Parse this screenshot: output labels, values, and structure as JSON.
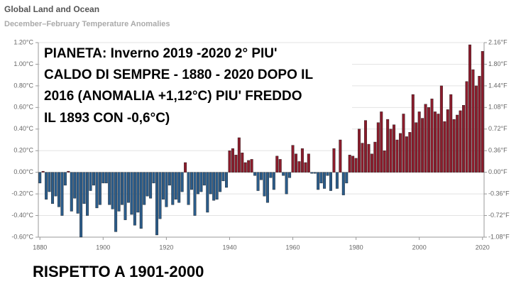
{
  "chart_data": {
    "type": "bar",
    "title": "Global Land and Ocean",
    "subtitle": "December–February Temperature Anomalies",
    "annotation_lines": [
      "PIANETA: Inverno 2019 -2020 2° PIU'",
      "CALDO DI SEMPRE - 1880 - 2020 DOPO IL",
      "2016 (ANOMALIA +1,12°C) PIU' FREDDO",
      "IL 1893 CON -0,6°C)"
    ],
    "footnote": "RISPETTO A 1901-2000",
    "x": [
      1880,
      1881,
      1882,
      1883,
      1884,
      1885,
      1886,
      1887,
      1888,
      1889,
      1890,
      1891,
      1892,
      1893,
      1894,
      1895,
      1896,
      1897,
      1898,
      1899,
      1900,
      1901,
      1902,
      1903,
      1904,
      1905,
      1906,
      1907,
      1908,
      1909,
      1910,
      1911,
      1912,
      1913,
      1914,
      1915,
      1916,
      1917,
      1918,
      1919,
      1920,
      1921,
      1922,
      1923,
      1924,
      1925,
      1926,
      1927,
      1928,
      1929,
      1930,
      1931,
      1932,
      1933,
      1934,
      1935,
      1936,
      1937,
      1938,
      1939,
      1940,
      1941,
      1942,
      1943,
      1944,
      1945,
      1946,
      1947,
      1948,
      1949,
      1950,
      1951,
      1952,
      1953,
      1954,
      1955,
      1956,
      1957,
      1958,
      1959,
      1960,
      1961,
      1962,
      1963,
      1964,
      1965,
      1966,
      1967,
      1968,
      1969,
      1970,
      1971,
      1972,
      1973,
      1974,
      1975,
      1976,
      1977,
      1978,
      1979,
      1980,
      1981,
      1982,
      1983,
      1984,
      1985,
      1986,
      1987,
      1988,
      1989,
      1990,
      1991,
      1992,
      1993,
      1994,
      1995,
      1996,
      1997,
      1998,
      1999,
      2000,
      2001,
      2002,
      2003,
      2004,
      2005,
      2006,
      2007,
      2008,
      2009,
      2010,
      2011,
      2012,
      2013,
      2014,
      2015,
      2016,
      2017,
      2018,
      2019,
      2020
    ],
    "values": [
      -0.1,
      0.01,
      -0.25,
      -0.18,
      -0.29,
      -0.22,
      -0.32,
      -0.4,
      -0.12,
      0.01,
      -0.36,
      -0.24,
      -0.38,
      -0.6,
      -0.29,
      -0.4,
      -0.17,
      -0.12,
      -0.33,
      -0.3,
      -0.1,
      -0.1,
      -0.3,
      -0.34,
      -0.55,
      -0.36,
      -0.3,
      -0.44,
      -0.28,
      -0.39,
      -0.49,
      -0.37,
      -0.52,
      -0.3,
      -0.22,
      -0.24,
      -0.1,
      -0.58,
      -0.43,
      -0.25,
      -0.32,
      -0.12,
      -0.3,
      -0.25,
      -0.28,
      -0.18,
      0.09,
      -0.3,
      -0.16,
      -0.4,
      -0.2,
      -0.18,
      -0.12,
      -0.37,
      -0.2,
      -0.26,
      -0.25,
      -0.18,
      -0.08,
      -0.14,
      0.2,
      0.22,
      0.16,
      0.32,
      0.18,
      0.09,
      0.11,
      0.12,
      -0.03,
      -0.17,
      -0.07,
      -0.22,
      -0.28,
      -0.05,
      -0.16,
      0.15,
      0.12,
      -0.03,
      -0.2,
      -0.05,
      0.25,
      0.17,
      0.1,
      0.22,
      0.09,
      0.17,
      -0.01,
      -0.01,
      -0.16,
      -0.1,
      -0.15,
      -0.03,
      -0.17,
      0.22,
      -0.15,
      0.3,
      -0.21,
      -0.1,
      0.16,
      0.15,
      0.13,
      0.4,
      0.27,
      0.48,
      0.26,
      0.17,
      0.28,
      0.46,
      0.56,
      0.2,
      0.49,
      0.4,
      0.44,
      0.3,
      0.36,
      0.54,
      0.33,
      0.37,
      0.72,
      0.46,
      0.56,
      0.5,
      0.63,
      0.6,
      0.68,
      0.56,
      0.54,
      0.8,
      0.47,
      0.58,
      0.72,
      0.49,
      0.53,
      0.57,
      0.62,
      0.84,
      1.18,
      0.95,
      0.8,
      0.89,
      1.12
    ],
    "positive_color": "#8b1c2c",
    "negative_color": "#2b5c8a",
    "xlim": [
      1879.5,
      2020.5
    ],
    "xticks": [
      1880,
      1900,
      1920,
      1940,
      1960,
      1980,
      2000,
      2020
    ],
    "ylim": [
      -0.6,
      1.2
    ],
    "yticks": [
      {
        "value": -0.6,
        "label": "-0.60°C"
      },
      {
        "value": -0.4,
        "label": "-0.40°C"
      },
      {
        "value": -0.2,
        "label": "-0.20°C"
      },
      {
        "value": 0,
        "label": "0.00°C"
      },
      {
        "value": 0.2,
        "label": "0.20°C"
      },
      {
        "value": 0.4,
        "label": "0.40°C"
      },
      {
        "value": 0.6,
        "label": "0.60°C"
      },
      {
        "value": 0.8,
        "label": "0.80°C"
      },
      {
        "value": 1.0,
        "label": "1.00°C"
      },
      {
        "value": 1.2,
        "label": "1.20°C"
      }
    ],
    "y2lim": [
      -1.08,
      2.16
    ],
    "y2ticks": [
      {
        "value": -1.08,
        "label": "-1.08°F"
      },
      {
        "value": -0.72,
        "label": "-0.72°F"
      },
      {
        "value": -0.36,
        "label": "-0.36°F"
      },
      {
        "value": 0,
        "label": "0.00°F"
      },
      {
        "value": 0.36,
        "label": "0.36°F"
      },
      {
        "value": 0.72,
        "label": "0.72°F"
      },
      {
        "value": 1.08,
        "label": "1.08°F"
      },
      {
        "value": 1.44,
        "label": "1.44°F"
      },
      {
        "value": 1.8,
        "label": "1.80°F"
      },
      {
        "value": 2.16,
        "label": "2.16°F"
      }
    ],
    "grid": true
  }
}
